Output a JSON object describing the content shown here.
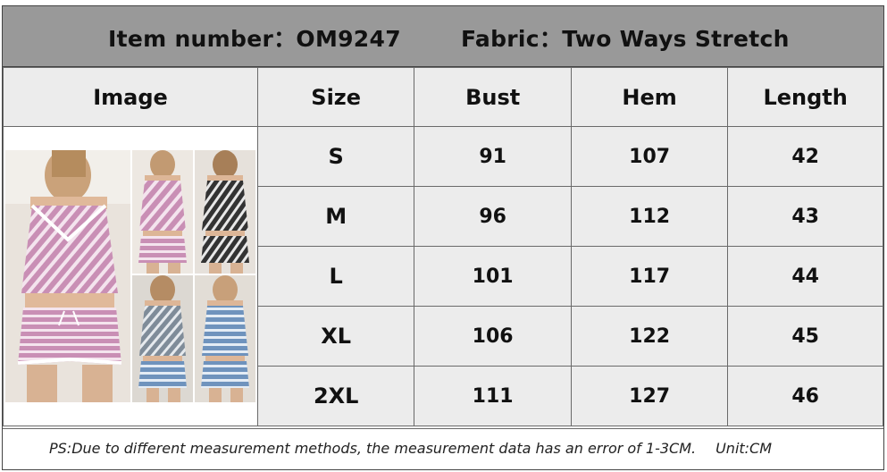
{
  "header": {
    "item_number": "Item number：OM9247",
    "fabric": "Fabric：Two Ways Stretch"
  },
  "table": {
    "columns": [
      "Image",
      "Size",
      "Bust",
      "Hem",
      "Length"
    ],
    "rows": [
      {
        "size": "S",
        "bust": "91",
        "hem": "107",
        "length": "42"
      },
      {
        "size": "M",
        "bust": "96",
        "hem": "112",
        "length": "43"
      },
      {
        "size": "L",
        "bust": "101",
        "hem": "117",
        "length": "44"
      },
      {
        "size": "XL",
        "bust": "106",
        "hem": "122",
        "length": "45"
      },
      {
        "size": "2XL",
        "bust": "111",
        "hem": "127",
        "length": "46"
      }
    ]
  },
  "footer": {
    "note": "PS:Due to different measurement methods, the measurement data has an error of 1-3CM.",
    "unit": "Unit:CM"
  },
  "colors": {
    "title_bar": "#999999",
    "cell_background": "#ececec",
    "border": "#6a6a6a"
  },
  "image": {
    "icon": "product-photo-collage",
    "variants": [
      "pink-stripe",
      "black-stripe",
      "grey-stripe",
      "blue-stripe"
    ]
  }
}
